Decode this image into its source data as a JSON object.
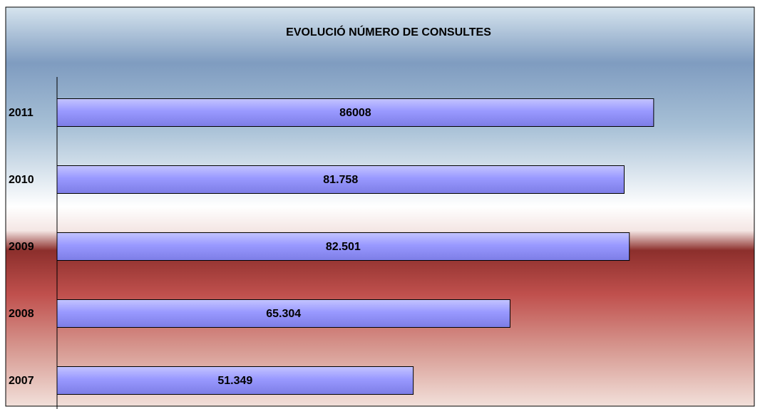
{
  "chart_data": {
    "type": "bar",
    "orientation": "horizontal",
    "title": "EVOLUCIÓ NÚMERO DE CONSULTES",
    "categories": [
      "2011",
      "2010",
      "2009",
      "2008",
      "2007"
    ],
    "values": [
      86008,
      81758,
      82501,
      65304,
      51349
    ],
    "value_labels": [
      "86008",
      "81.758",
      "82.501",
      "65.304",
      "51.349"
    ],
    "color": "#9999ff",
    "xlim": [
      0,
      100000
    ]
  }
}
